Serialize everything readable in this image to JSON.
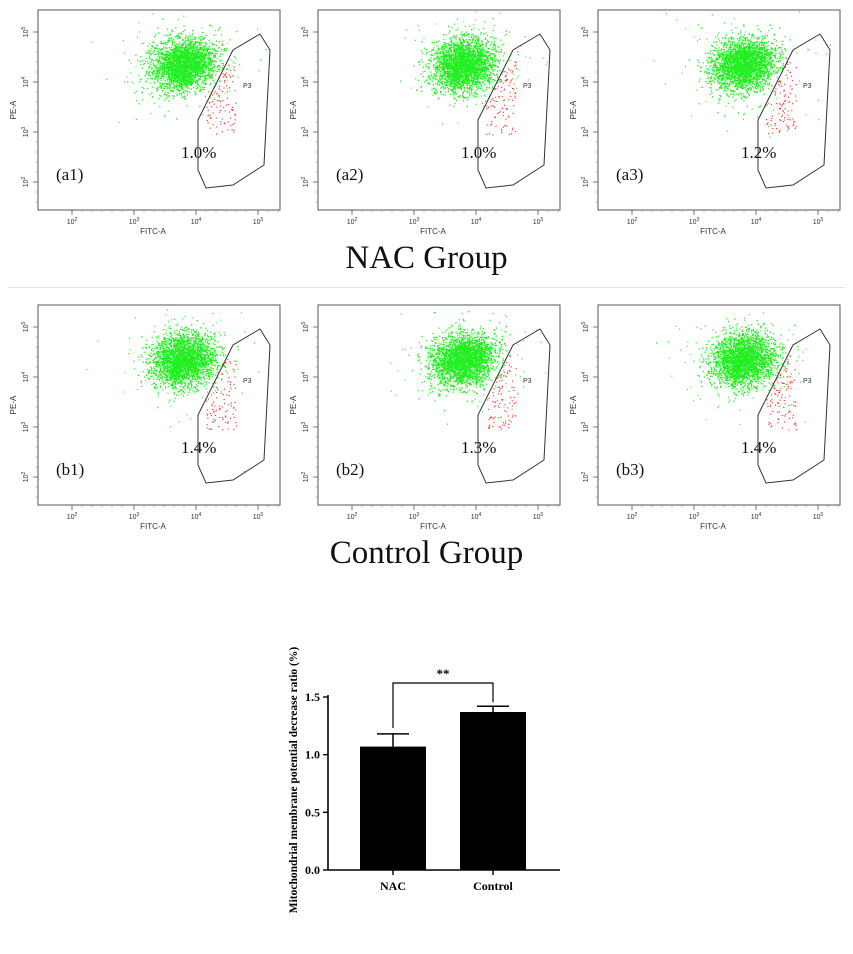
{
  "chart_data": [
    {
      "type": "scatter",
      "panel": "(a1)",
      "gate": "P3",
      "gate_percent": "1.0%",
      "xlabel": "FITC-A",
      "ylabel": "PE-A",
      "xticks": [
        "10^2",
        "10^3",
        "10^4",
        "10^5"
      ],
      "yticks": [
        "10^2",
        "10^3",
        "10^4",
        "10^5"
      ]
    },
    {
      "type": "scatter",
      "panel": "(a2)",
      "gate": "P3",
      "gate_percent": "1.0%",
      "xlabel": "FITC-A",
      "ylabel": "PE-A",
      "xticks": [
        "10^2",
        "10^3",
        "10^4",
        "10^5"
      ],
      "yticks": [
        "10^2",
        "10^3",
        "10^4",
        "10^5"
      ]
    },
    {
      "type": "scatter",
      "panel": "(a3)",
      "gate": "P3",
      "gate_percent": "1.2%",
      "xlabel": "FITC-A",
      "ylabel": "PE-A",
      "xticks": [
        "10^2",
        "10^3",
        "10^4",
        "10^5"
      ],
      "yticks": [
        "10^2",
        "10^3",
        "10^4",
        "10^5"
      ]
    },
    {
      "type": "scatter",
      "panel": "(b1)",
      "gate": "P3",
      "gate_percent": "1.4%",
      "xlabel": "FITC-A",
      "ylabel": "PE-A",
      "xticks": [
        "10^2",
        "10^3",
        "10^4",
        "10^5"
      ],
      "yticks": [
        "10^2",
        "10^3",
        "10^4",
        "10^5"
      ]
    },
    {
      "type": "scatter",
      "panel": "(b2)",
      "gate": "P3",
      "gate_percent": "1.3%",
      "xlabel": "FITC-A",
      "ylabel": "PE-A",
      "xticks": [
        "10^2",
        "10^3",
        "10^4",
        "10^5"
      ],
      "yticks": [
        "10^2",
        "10^3",
        "10^4",
        "10^5"
      ]
    },
    {
      "type": "scatter",
      "panel": "(b3)",
      "gate": "P3",
      "gate_percent": "1.4%",
      "xlabel": "FITC-A",
      "ylabel": "PE-A",
      "xticks": [
        "10^2",
        "10^3",
        "10^4",
        "10^5"
      ],
      "yticks": [
        "10^2",
        "10^3",
        "10^4",
        "10^5"
      ]
    },
    {
      "type": "bar",
      "categories": [
        "NAC",
        "Control"
      ],
      "values": [
        1.07,
        1.37
      ],
      "error_upper": [
        1.18,
        1.42
      ],
      "ylabel": "Mitochondrial membrane potential decrease ratio (%)",
      "ylim": [
        0,
        1.5
      ],
      "yticks": [
        "0.0",
        "0.5",
        "1.0",
        "1.5"
      ],
      "significance": "**",
      "bar_color": "#000000"
    }
  ],
  "group_titles": {
    "a": "NAC Group",
    "b": "Control Group"
  },
  "colors": {
    "population": "#22ee22",
    "gated": "#ee3333",
    "gate_outline": "#333333"
  }
}
